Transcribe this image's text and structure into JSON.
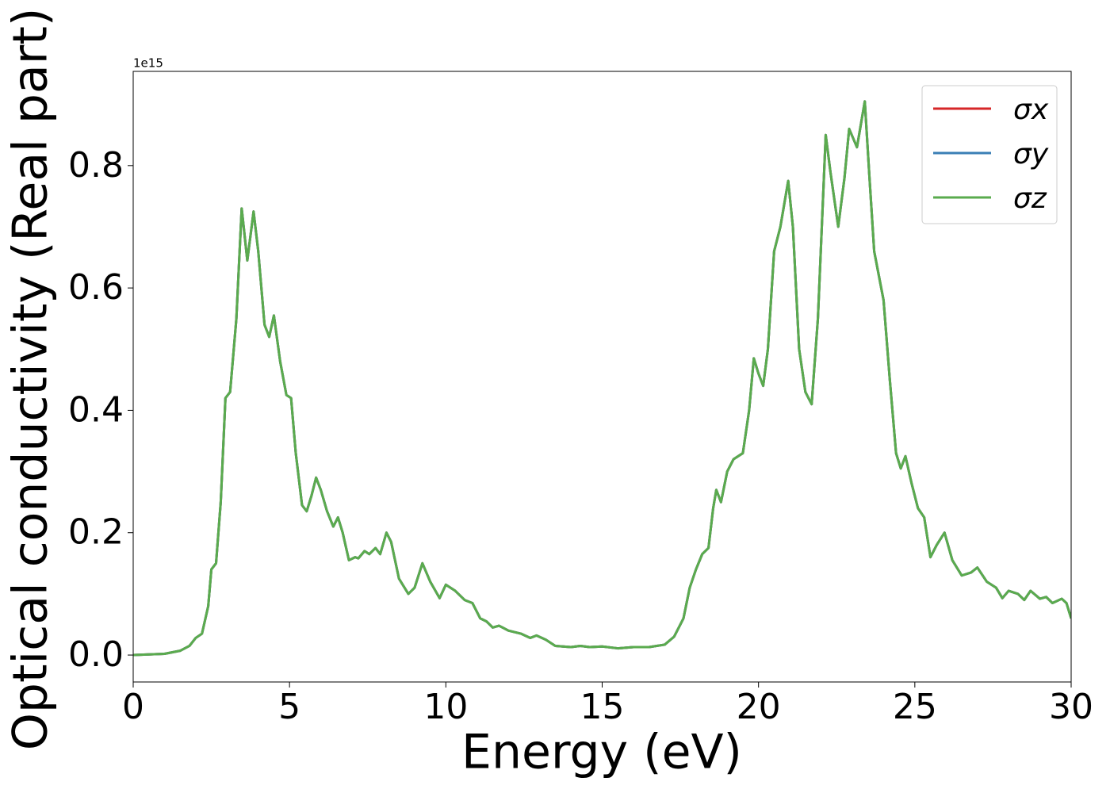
{
  "chart_data": {
    "type": "line",
    "xlabel": "Energy (eV)",
    "ylabel": "Optical conductivity (Real part)",
    "y_offset_label": "1e15",
    "xlim": [
      0,
      30
    ],
    "xticks": [
      0,
      5,
      10,
      15,
      20,
      25,
      30
    ],
    "ylim": [
      -0.044,
      0.954
    ],
    "yticks": [
      {
        "value": 0,
        "label": "0.0"
      },
      {
        "value": 0.2,
        "label": "0.2"
      },
      {
        "value": 0.4,
        "label": "0.4"
      },
      {
        "value": 0.6,
        "label": "0.6"
      },
      {
        "value": 0.8,
        "label": "0.8"
      }
    ],
    "legend": "upper right",
    "x": [
      0,
      1,
      1.5,
      1.8,
      2.0,
      2.2,
      2.4,
      2.5,
      2.65,
      2.8,
      2.95,
      3.1,
      3.3,
      3.47,
      3.65,
      3.85,
      4.0,
      4.2,
      4.35,
      4.5,
      4.7,
      4.9,
      5.05,
      5.2,
      5.4,
      5.55,
      5.7,
      5.85,
      6.0,
      6.2,
      6.4,
      6.55,
      6.7,
      6.9,
      7.1,
      7.2,
      7.4,
      7.55,
      7.75,
      7.9,
      8.1,
      8.25,
      8.5,
      8.8,
      9.0,
      9.25,
      9.5,
      9.8,
      10.0,
      10.3,
      10.6,
      10.85,
      11.1,
      11.3,
      11.5,
      11.7,
      12.0,
      12.4,
      12.7,
      12.9,
      13.2,
      13.5,
      14.0,
      14.3,
      14.6,
      15.0,
      15.5,
      16.0,
      16.5,
      17.0,
      17.3,
      17.6,
      17.8,
      18.0,
      18.2,
      18.4,
      18.55,
      18.65,
      18.8,
      19.0,
      19.2,
      19.5,
      19.7,
      19.85,
      20.0,
      20.15,
      20.3,
      20.5,
      20.7,
      20.95,
      21.1,
      21.3,
      21.5,
      21.7,
      21.9,
      22.15,
      22.3,
      22.55,
      22.75,
      22.9,
      23.15,
      23.4,
      23.55,
      23.7,
      24.0,
      24.2,
      24.4,
      24.55,
      24.7,
      24.9,
      25.1,
      25.3,
      25.5,
      25.7,
      25.95,
      26.2,
      26.5,
      26.8,
      27.0,
      27.3,
      27.6,
      27.8,
      28.0,
      28.3,
      28.5,
      28.7,
      29.0,
      29.2,
      29.4,
      29.7,
      29.85,
      30
    ],
    "series": [
      {
        "name": "σx",
        "color": "#d62728",
        "values": [
          0,
          0.002,
          0.007,
          0.015,
          0.028,
          0.035,
          0.08,
          0.14,
          0.15,
          0.25,
          0.42,
          0.43,
          0.55,
          0.73,
          0.645,
          0.725,
          0.66,
          0.54,
          0.52,
          0.555,
          0.48,
          0.425,
          0.42,
          0.33,
          0.245,
          0.235,
          0.26,
          0.29,
          0.27,
          0.235,
          0.21,
          0.225,
          0.2,
          0.155,
          0.16,
          0.158,
          0.17,
          0.165,
          0.175,
          0.165,
          0.2,
          0.185,
          0.125,
          0.1,
          0.11,
          0.15,
          0.12,
          0.093,
          0.115,
          0.105,
          0.09,
          0.085,
          0.06,
          0.055,
          0.045,
          0.048,
          0.04,
          0.035,
          0.028,
          0.032,
          0.025,
          0.015,
          0.013,
          0.015,
          0.013,
          0.014,
          0.011,
          0.013,
          0.013,
          0.017,
          0.03,
          0.06,
          0.11,
          0.14,
          0.165,
          0.175,
          0.24,
          0.27,
          0.25,
          0.3,
          0.32,
          0.33,
          0.4,
          0.485,
          0.46,
          0.44,
          0.5,
          0.66,
          0.7,
          0.775,
          0.7,
          0.5,
          0.43,
          0.41,
          0.55,
          0.85,
          0.79,
          0.7,
          0.78,
          0.86,
          0.83,
          0.905,
          0.78,
          0.66,
          0.58,
          0.45,
          0.33,
          0.305,
          0.325,
          0.28,
          0.24,
          0.225,
          0.16,
          0.18,
          0.2,
          0.155,
          0.13,
          0.135,
          0.143,
          0.12,
          0.11,
          0.093,
          0.105,
          0.1,
          0.09,
          0.105,
          0.092,
          0.095,
          0.085,
          0.092,
          0.085,
          0.06
        ]
      },
      {
        "name": "σy",
        "color": "#3a7fb5",
        "values": [
          0,
          0.002,
          0.007,
          0.015,
          0.028,
          0.035,
          0.08,
          0.14,
          0.15,
          0.25,
          0.42,
          0.43,
          0.55,
          0.73,
          0.645,
          0.725,
          0.66,
          0.54,
          0.52,
          0.555,
          0.48,
          0.425,
          0.42,
          0.33,
          0.245,
          0.235,
          0.26,
          0.29,
          0.27,
          0.235,
          0.21,
          0.225,
          0.2,
          0.155,
          0.16,
          0.158,
          0.17,
          0.165,
          0.175,
          0.165,
          0.2,
          0.185,
          0.125,
          0.1,
          0.11,
          0.15,
          0.12,
          0.093,
          0.115,
          0.105,
          0.09,
          0.085,
          0.06,
          0.055,
          0.045,
          0.048,
          0.04,
          0.035,
          0.028,
          0.032,
          0.025,
          0.015,
          0.013,
          0.015,
          0.013,
          0.014,
          0.011,
          0.013,
          0.013,
          0.017,
          0.03,
          0.06,
          0.11,
          0.14,
          0.165,
          0.175,
          0.24,
          0.27,
          0.25,
          0.3,
          0.32,
          0.33,
          0.4,
          0.485,
          0.46,
          0.44,
          0.5,
          0.66,
          0.7,
          0.775,
          0.7,
          0.5,
          0.43,
          0.41,
          0.55,
          0.85,
          0.79,
          0.7,
          0.78,
          0.86,
          0.83,
          0.905,
          0.78,
          0.66,
          0.58,
          0.45,
          0.33,
          0.305,
          0.325,
          0.28,
          0.24,
          0.225,
          0.16,
          0.18,
          0.2,
          0.155,
          0.13,
          0.135,
          0.143,
          0.12,
          0.11,
          0.093,
          0.105,
          0.1,
          0.09,
          0.105,
          0.092,
          0.095,
          0.085,
          0.092,
          0.085,
          0.06
        ]
      },
      {
        "name": "σz",
        "color": "#5aab4e",
        "values": [
          0,
          0.002,
          0.007,
          0.015,
          0.028,
          0.035,
          0.08,
          0.14,
          0.15,
          0.25,
          0.42,
          0.43,
          0.55,
          0.73,
          0.645,
          0.725,
          0.66,
          0.54,
          0.52,
          0.555,
          0.48,
          0.425,
          0.42,
          0.33,
          0.245,
          0.235,
          0.26,
          0.29,
          0.27,
          0.235,
          0.21,
          0.225,
          0.2,
          0.155,
          0.16,
          0.158,
          0.17,
          0.165,
          0.175,
          0.165,
          0.2,
          0.185,
          0.125,
          0.1,
          0.11,
          0.15,
          0.12,
          0.093,
          0.115,
          0.105,
          0.09,
          0.085,
          0.06,
          0.055,
          0.045,
          0.048,
          0.04,
          0.035,
          0.028,
          0.032,
          0.025,
          0.015,
          0.013,
          0.015,
          0.013,
          0.014,
          0.011,
          0.013,
          0.013,
          0.017,
          0.03,
          0.06,
          0.11,
          0.14,
          0.165,
          0.175,
          0.24,
          0.27,
          0.25,
          0.3,
          0.32,
          0.33,
          0.4,
          0.485,
          0.46,
          0.44,
          0.5,
          0.66,
          0.7,
          0.775,
          0.7,
          0.5,
          0.43,
          0.41,
          0.55,
          0.85,
          0.79,
          0.7,
          0.78,
          0.86,
          0.83,
          0.905,
          0.78,
          0.66,
          0.58,
          0.45,
          0.33,
          0.305,
          0.325,
          0.28,
          0.24,
          0.225,
          0.16,
          0.18,
          0.2,
          0.155,
          0.13,
          0.135,
          0.143,
          0.12,
          0.11,
          0.093,
          0.105,
          0.1,
          0.09,
          0.105,
          0.092,
          0.095,
          0.085,
          0.092,
          0.085,
          0.06
        ]
      }
    ]
  }
}
